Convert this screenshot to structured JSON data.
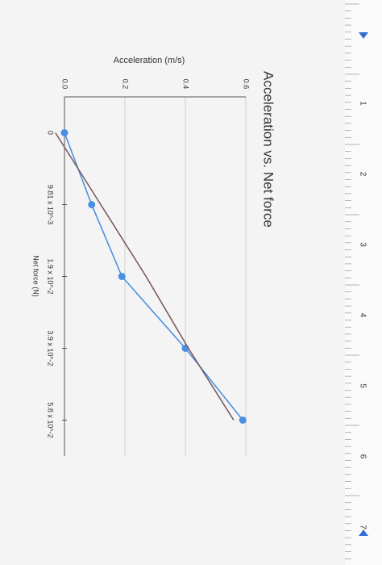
{
  "chart_data": {
    "type": "line",
    "title": "Acceleration vs. Net force",
    "y_label": "Acceleration (m/s)",
    "x_label": "Net force (N)",
    "categories": [
      "0",
      "9.81 x 10^-3",
      "1.9 x 10^-2",
      "3.9 x 10^-2",
      "5.8 x 10^-2"
    ],
    "series": [
      {
        "color": "#4a90e2",
        "markers": true,
        "values": [
          0.0,
          0.09,
          0.19,
          0.4,
          0.59
        ]
      },
      {
        "color": "#7a5c60",
        "markers": false,
        "values": [
          -0.03,
          0.12,
          0.27,
          0.41,
          0.56
        ]
      }
    ],
    "ylim": [
      0,
      0.6
    ],
    "yticks": [
      {
        "value": 0,
        "label": "0.0"
      },
      0.2,
      0.4,
      0.6
    ],
    "grid": true
  },
  "ruler": {
    "labels": [
      "1",
      "2",
      "3",
      "4",
      "5",
      "6",
      "7"
    ]
  }
}
